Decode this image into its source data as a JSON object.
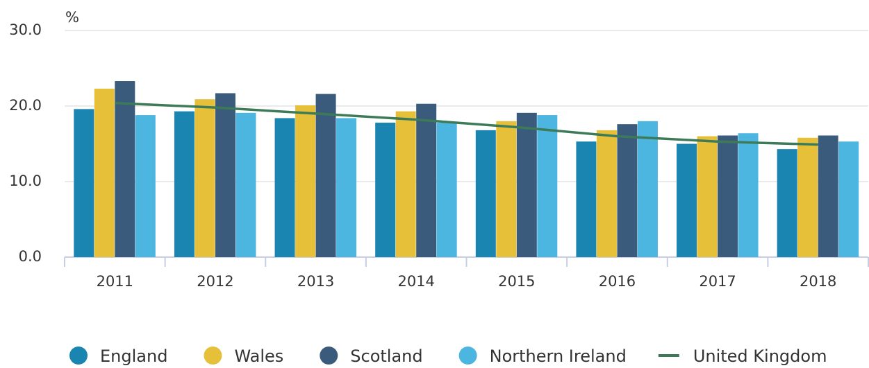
{
  "chart_data": {
    "type": "bar",
    "y_unit": "%",
    "categories": [
      "2011",
      "2012",
      "2013",
      "2014",
      "2015",
      "2016",
      "2017",
      "2018"
    ],
    "series": [
      {
        "name": "England",
        "color": "#1a85b0",
        "values": [
          19.6,
          19.3,
          18.4,
          17.8,
          16.8,
          15.3,
          15.0,
          14.3
        ]
      },
      {
        "name": "Wales",
        "color": "#e6c039",
        "values": [
          22.3,
          20.9,
          20.1,
          19.3,
          18.0,
          16.8,
          16.0,
          15.8
        ]
      },
      {
        "name": "Scotland",
        "color": "#3b5b7d",
        "values": [
          23.3,
          21.7,
          21.6,
          20.3,
          19.1,
          17.6,
          16.1,
          16.1
        ]
      },
      {
        "name": "Northern Ireland",
        "color": "#4cb5e0",
        "values": [
          18.8,
          19.1,
          18.4,
          17.8,
          18.8,
          18.0,
          16.4,
          15.3
        ]
      },
      {
        "name": "United Kingdom",
        "type": "line",
        "color": "#3d7a58",
        "values": [
          20.4,
          19.8,
          19.0,
          18.2,
          17.2,
          16.0,
          15.3,
          14.9
        ]
      }
    ],
    "ylim": [
      0,
      30
    ],
    "yticks": [
      {
        "value": 0,
        "label": "0.0"
      },
      {
        "value": 10,
        "label": "10.0"
      },
      {
        "value": 20,
        "label": "20.0"
      },
      {
        "value": 30,
        "label": "30.0"
      }
    ],
    "grid": true,
    "legend": "bottom"
  }
}
